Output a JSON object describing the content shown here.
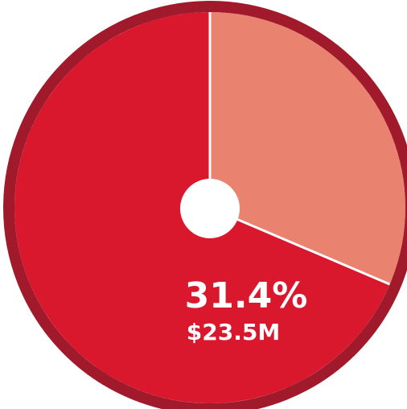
{
  "chart_data": {
    "type": "pie",
    "values": [
      31.4,
      68.6
    ],
    "colors": [
      "#e9836f",
      "#d9172d"
    ],
    "value_labels": [
      "31.4%"
    ],
    "annotations": [
      "$23.5M"
    ],
    "ring_color": "#a01a2b"
  }
}
